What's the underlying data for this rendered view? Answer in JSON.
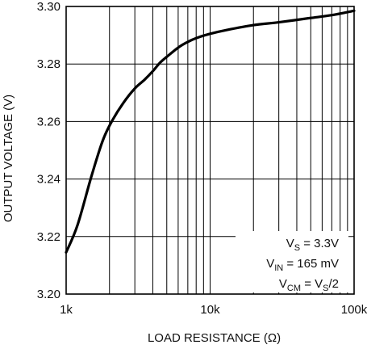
{
  "chart_data": {
    "type": "line",
    "xscale": "log",
    "xlim": [
      1000,
      100000
    ],
    "ylim": [
      3.2,
      3.3
    ],
    "grid": true,
    "xlabel": "LOAD RESISTANCE (Ω)",
    "ylabel": "OUTPUT VOLTAGE (V)",
    "x_tick_labels": [
      "1k",
      "10k",
      "100k"
    ],
    "x_tick_values": [
      1000,
      10000,
      100000
    ],
    "y_tick_labels": [
      "3.20",
      "3.22",
      "3.24",
      "3.26",
      "3.28",
      "3.30"
    ],
    "y_tick_values": [
      3.2,
      3.22,
      3.24,
      3.26,
      3.28,
      3.3
    ],
    "series": [
      {
        "x": [
          1000,
          1200,
          1500,
          1800,
          2100,
          2500,
          3000,
          3500,
          4000,
          4500,
          5000,
          6000,
          7000,
          8000,
          10000,
          13000,
          20000,
          30000,
          50000,
          70000,
          100000
        ],
        "y": [
          3.2145,
          3.224,
          3.241,
          3.2535,
          3.2605,
          3.2665,
          3.2715,
          3.2745,
          3.2775,
          3.2805,
          3.2825,
          3.2857,
          3.2877,
          3.289,
          3.2905,
          3.2918,
          3.2935,
          3.2945,
          3.296,
          3.297,
          3.2985
        ]
      }
    ],
    "annotations": [
      {
        "main": "V",
        "sub": "S",
        "rest": " = 3.3V"
      },
      {
        "main": "V",
        "sub": "IN",
        "rest": " = 165 mV"
      },
      {
        "main": "V",
        "sub": "CM",
        "rest": " = V",
        "sub2": "S",
        "rest2": "/2"
      }
    ]
  }
}
